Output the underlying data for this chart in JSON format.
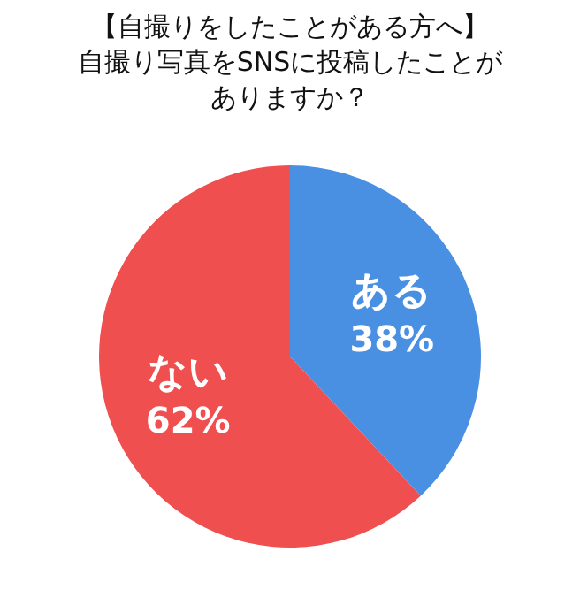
{
  "chart_data": {
    "type": "pie",
    "title": "【自撮りをしたことがある方へ】",
    "subtitle": "自撮り写真をSNSに投稿したことがありますか？",
    "categories": [
      "ある",
      "ない"
    ],
    "values": [
      38,
      62
    ],
    "colors": [
      "#4a90e2",
      "#f04f4f"
    ],
    "value_labels": [
      "38%",
      "62%"
    ],
    "legend": false
  }
}
